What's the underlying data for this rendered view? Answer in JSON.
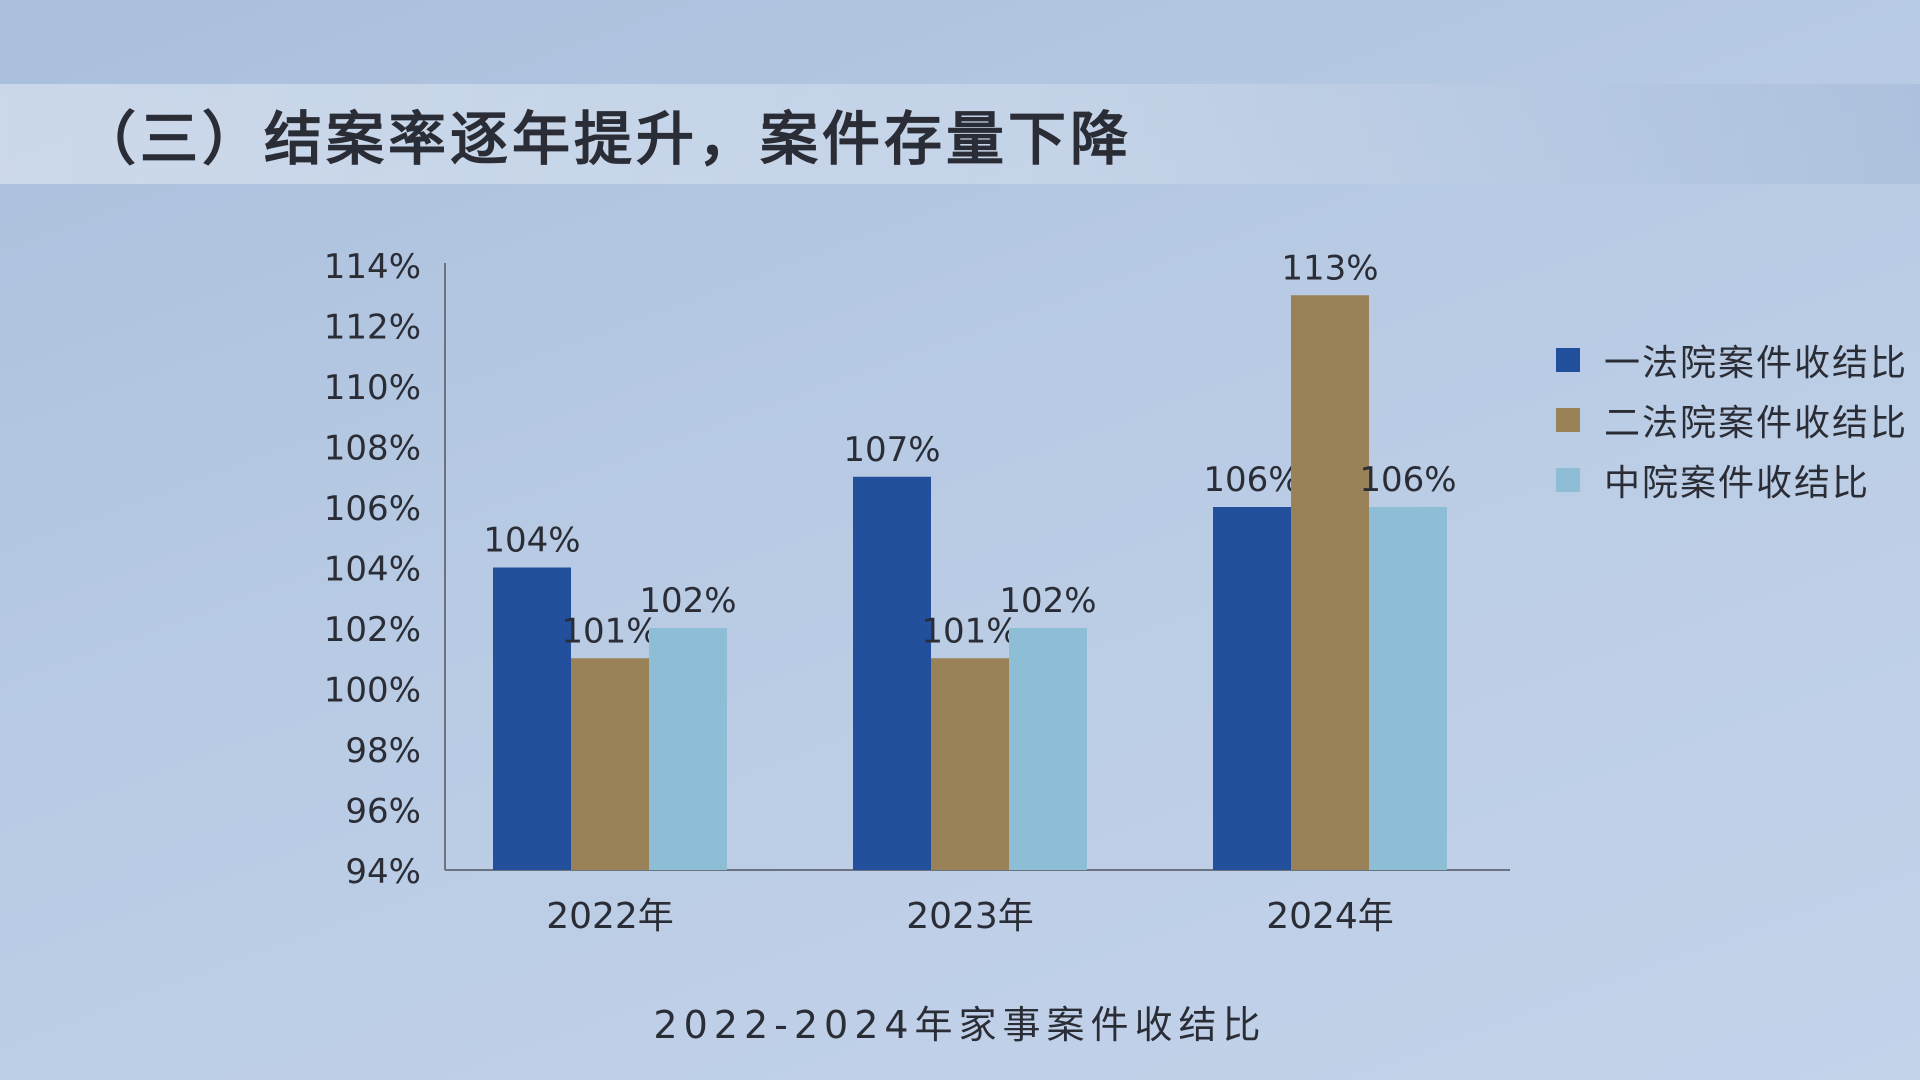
{
  "page": {
    "title": "（三）结案率逐年提升，案件存量下降"
  },
  "chart_data": {
    "type": "bar",
    "title": "2022-2024年家事案件收结比",
    "categories": [
      "2022年",
      "2023年",
      "2024年"
    ],
    "series": [
      {
        "name": "一法院案件收结比",
        "color": "#23509c",
        "values": [
          104,
          107,
          106
        ],
        "labels": [
          "104%",
          "107%",
          "106%"
        ]
      },
      {
        "name": "二法院案件收结比",
        "color": "#9a8258",
        "values": [
          101,
          101,
          113
        ],
        "labels": [
          "101%",
          "101%",
          "113%"
        ]
      },
      {
        "name": "中院案件收结比",
        "color": "#8ebdd6",
        "values": [
          102,
          102,
          106
        ],
        "labels": [
          "102%",
          "102%",
          "106%"
        ]
      }
    ],
    "ylim": [
      94,
      114
    ],
    "yticks": [
      "94%",
      "96%",
      "98%",
      "100%",
      "102%",
      "104%",
      "106%",
      "108%",
      "110%",
      "112%",
      "114%"
    ],
    "ytick_values": [
      94,
      96,
      98,
      100,
      102,
      104,
      106,
      108,
      110,
      112,
      114
    ],
    "legend_position": "right",
    "grid": false
  }
}
